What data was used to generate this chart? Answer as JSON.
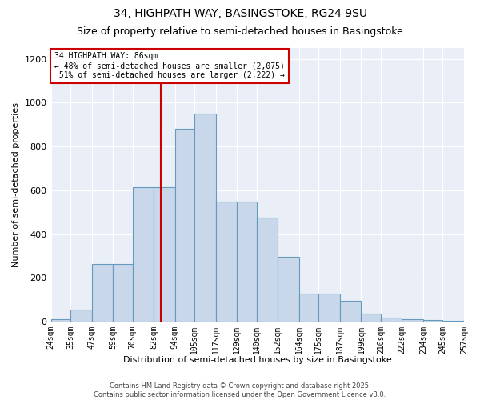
{
  "title": "34, HIGHPATH WAY, BASINGSTOKE, RG24 9SU",
  "subtitle": "Size of property relative to semi-detached houses in Basingstoke",
  "xlabel": "Distribution of semi-detached houses by size in Basingstoke",
  "ylabel": "Number of semi-detached properties",
  "bar_labels": [
    "24sqm",
    "35sqm",
    "47sqm",
    "59sqm",
    "70sqm",
    "82sqm",
    "94sqm",
    "105sqm",
    "117sqm",
    "129sqm",
    "140sqm",
    "152sqm",
    "164sqm",
    "175sqm",
    "187sqm",
    "199sqm",
    "210sqm",
    "222sqm",
    "234sqm",
    "245sqm",
    "257sqm"
  ],
  "bin_edges": [
    24,
    35,
    47,
    59,
    70,
    82,
    94,
    105,
    117,
    129,
    140,
    152,
    164,
    175,
    187,
    199,
    210,
    222,
    234,
    245,
    257
  ],
  "heights": [
    10,
    55,
    265,
    265,
    615,
    615,
    880,
    950,
    550,
    550,
    475,
    295,
    130,
    130,
    95,
    38,
    18,
    13,
    8,
    5,
    5
  ],
  "bar_color": "#c8d8ea",
  "bar_edge_color": "#6699bb",
  "property_value": 86,
  "property_line_color": "#cc0000",
  "annotation_text": "34 HIGHPATH WAY: 86sqm\n← 48% of semi-detached houses are smaller (2,075)\n 51% of semi-detached houses are larger (2,222) →",
  "annotation_box_color": "#ffffff",
  "annotation_box_edge": "#cc0000",
  "ylim": [
    0,
    1250
  ],
  "yticks": [
    0,
    200,
    400,
    600,
    800,
    1000,
    1200
  ],
  "background_color": "#eaeff7",
  "footer_text": "Contains HM Land Registry data © Crown copyright and database right 2025.\nContains public sector information licensed under the Open Government Licence v3.0.",
  "title_fontsize": 10,
  "subtitle_fontsize": 9,
  "footer_fontsize": 6
}
